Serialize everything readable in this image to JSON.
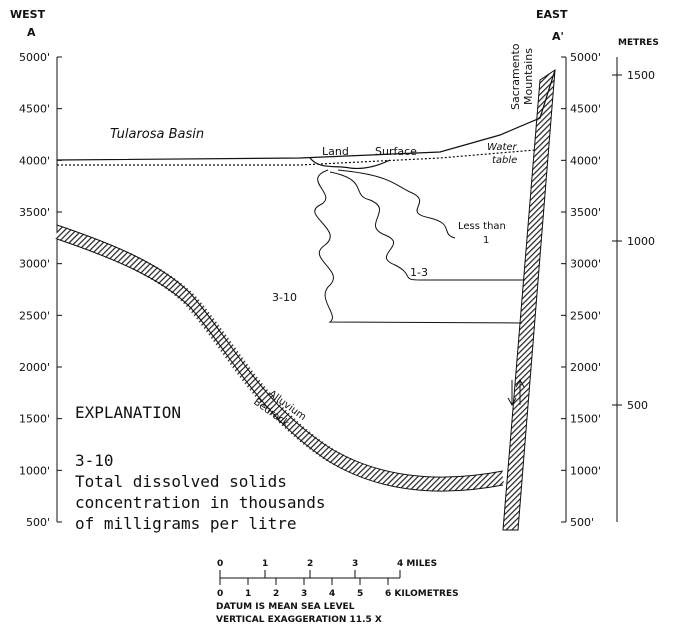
{
  "header": {
    "west": "WEST",
    "a": "A",
    "east": "EAST",
    "a_prime": "A'",
    "metres": "METRES"
  },
  "left_axis": [
    "5000'",
    "4500'",
    "4000'",
    "3500'",
    "3000'",
    "2500'",
    "2000'",
    "1500'",
    "1000'",
    "500'"
  ],
  "right_axis": [
    "5000'",
    "4500'",
    "4000'",
    "3500'",
    "3000'",
    "2500'",
    "2000'",
    "1500'",
    "1000'",
    "500'"
  ],
  "metres_axis": [
    "1500",
    "1000",
    "500"
  ],
  "labels": {
    "tularosa": "Tularosa Basin",
    "land": "Land",
    "surface": "Surface",
    "water": "Water",
    "table": "table",
    "sacramento": "Sacramento",
    "mountains": "Mountains",
    "less_than": "Less than",
    "one": "1",
    "one_three": "1-3",
    "three_ten": "3-10",
    "alluvium": "Alluvium",
    "bedrock": "Bedrock"
  },
  "explanation": {
    "title": "EXPLANATION",
    "code": "3-10",
    "lines": [
      "Total dissolved solids",
      "concentration in thousands",
      "of milligrams per litre"
    ]
  },
  "scale": {
    "miles": [
      "0",
      "1",
      "2",
      "3",
      "4 MILES"
    ],
    "km": [
      "0",
      "1",
      "2",
      "3",
      "4",
      "5",
      "6 KILOMETRES"
    ],
    "notes": [
      "DATUM IS MEAN SEA LEVEL",
      "VERTICAL EXAGGERATION 11.5 X"
    ]
  }
}
